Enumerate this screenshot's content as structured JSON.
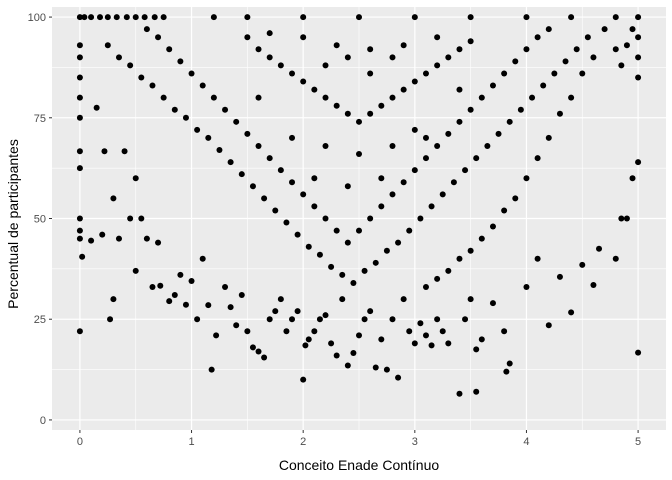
{
  "chart_data": {
    "type": "scatter",
    "title": "",
    "xlabel": "Conceito Enade Contínuo",
    "ylabel": "Percentual de participantes",
    "xlim": [
      -0.25,
      5.25
    ],
    "ylim": [
      -2.5,
      102.5
    ],
    "x_ticks": [
      0,
      1,
      2,
      3,
      4,
      5
    ],
    "x_tick_labels": [
      "0",
      "1",
      "2",
      "3",
      "4",
      "5"
    ],
    "y_ticks": [
      0,
      25,
      50,
      75,
      100
    ],
    "y_tick_labels": [
      "0",
      "25",
      "50",
      "75",
      "100"
    ],
    "grid": true,
    "legend": "none",
    "colors": {
      "panel": "#ebebeb",
      "grid": "#ffffff",
      "point": "#000000"
    },
    "series": [
      {
        "values": [
          [
            0.0,
            100
          ],
          [
            0.04,
            100
          ],
          [
            0.1,
            100
          ],
          [
            0.18,
            100
          ],
          [
            0.25,
            100
          ],
          [
            0.33,
            100
          ],
          [
            0.42,
            100
          ],
          [
            0.5,
            100
          ],
          [
            0.58,
            100
          ],
          [
            0.67,
            100
          ],
          [
            0.75,
            100
          ],
          [
            1.2,
            100
          ],
          [
            1.5,
            100
          ],
          [
            2.0,
            100
          ],
          [
            2.5,
            100
          ],
          [
            3.0,
            100
          ],
          [
            3.5,
            100
          ],
          [
            4.0,
            100
          ],
          [
            4.4,
            100
          ],
          [
            4.8,
            100
          ],
          [
            5.0,
            100
          ],
          [
            0.0,
            93
          ],
          [
            0.0,
            90
          ],
          [
            0.0,
            85
          ],
          [
            0.0,
            80
          ],
          [
            0.0,
            75
          ],
          [
            0.0,
            66.7
          ],
          [
            0.0,
            62.5
          ],
          [
            0.0,
            50
          ],
          [
            0.0,
            47
          ],
          [
            0.0,
            45
          ],
          [
            0.0,
            22
          ],
          [
            0.02,
            40.5
          ],
          [
            0.1,
            44.5
          ],
          [
            0.15,
            77.5
          ],
          [
            0.2,
            46
          ],
          [
            0.22,
            66.7
          ],
          [
            0.27,
            25
          ],
          [
            0.3,
            30
          ],
          [
            0.3,
            55
          ],
          [
            0.35,
            45
          ],
          [
            0.4,
            66.7
          ],
          [
            0.45,
            50
          ],
          [
            0.5,
            37
          ],
          [
            0.5,
            60
          ],
          [
            0.55,
            50
          ],
          [
            0.6,
            45
          ],
          [
            0.65,
            33
          ],
          [
            0.7,
            44
          ],
          [
            0.72,
            33.3
          ],
          [
            0.8,
            29.5
          ],
          [
            0.85,
            31
          ],
          [
            0.9,
            36
          ],
          [
            0.95,
            28.6
          ],
          [
            1.0,
            34.5
          ],
          [
            1.05,
            25
          ],
          [
            1.1,
            40
          ],
          [
            1.15,
            28.5
          ],
          [
            1.18,
            12.5
          ],
          [
            1.22,
            21
          ],
          [
            1.3,
            33
          ],
          [
            1.35,
            28
          ],
          [
            1.4,
            23.5
          ],
          [
            1.45,
            31
          ],
          [
            1.5,
            22
          ],
          [
            1.55,
            18
          ],
          [
            1.6,
            17
          ],
          [
            1.65,
            15.5
          ],
          [
            1.7,
            25
          ],
          [
            1.75,
            27
          ],
          [
            1.8,
            30
          ],
          [
            1.85,
            22
          ],
          [
            1.9,
            25
          ],
          [
            1.95,
            27
          ],
          [
            2.0,
            10
          ],
          [
            2.02,
            18.5
          ],
          [
            2.05,
            20
          ],
          [
            2.1,
            22
          ],
          [
            2.15,
            25
          ],
          [
            2.2,
            26
          ],
          [
            2.25,
            19
          ],
          [
            2.3,
            16
          ],
          [
            2.35,
            30
          ],
          [
            2.4,
            13.5
          ],
          [
            2.45,
            16.6
          ],
          [
            2.5,
            21
          ],
          [
            2.55,
            25
          ],
          [
            2.6,
            27
          ],
          [
            2.65,
            13
          ],
          [
            2.7,
            20
          ],
          [
            2.75,
            12.5
          ],
          [
            2.8,
            25
          ],
          [
            2.85,
            10.5
          ],
          [
            2.9,
            30
          ],
          [
            2.95,
            22
          ],
          [
            3.0,
            19
          ],
          [
            3.05,
            24
          ],
          [
            3.1,
            21
          ],
          [
            3.15,
            18.5
          ],
          [
            3.2,
            25
          ],
          [
            3.25,
            22
          ],
          [
            3.3,
            19
          ],
          [
            3.4,
            6.5
          ],
          [
            3.45,
            25
          ],
          [
            3.5,
            30
          ],
          [
            3.55,
            7
          ],
          [
            3.55,
            17.5
          ],
          [
            3.6,
            20
          ],
          [
            3.7,
            29
          ],
          [
            3.8,
            22
          ],
          [
            3.82,
            12
          ],
          [
            3.85,
            14
          ],
          [
            4.0,
            33
          ],
          [
            4.1,
            40
          ],
          [
            4.2,
            23.5
          ],
          [
            4.3,
            35.5
          ],
          [
            4.4,
            26.7
          ],
          [
            4.5,
            38.5
          ],
          [
            4.6,
            33.5
          ],
          [
            4.65,
            42.5
          ],
          [
            4.8,
            40
          ],
          [
            4.85,
            50
          ],
          [
            4.9,
            50
          ],
          [
            4.95,
            60
          ],
          [
            5.0,
            64
          ],
          [
            5.0,
            16.7
          ],
          [
            5.0,
            95
          ],
          [
            5.0,
            90
          ],
          [
            5.0,
            85
          ],
          [
            4.95,
            97
          ],
          [
            4.9,
            93
          ],
          [
            4.85,
            88
          ],
          [
            4.8,
            92
          ],
          [
            4.7,
            97
          ],
          [
            4.6,
            90
          ],
          [
            4.5,
            86
          ],
          [
            4.4,
            80
          ],
          [
            4.3,
            76
          ],
          [
            4.2,
            70
          ],
          [
            4.1,
            65
          ],
          [
            4.0,
            60
          ],
          [
            3.9,
            55
          ],
          [
            3.8,
            52
          ],
          [
            3.7,
            48
          ],
          [
            3.6,
            45
          ],
          [
            3.5,
            42
          ],
          [
            3.4,
            40
          ],
          [
            3.3,
            37
          ],
          [
            3.2,
            35
          ],
          [
            3.1,
            33
          ],
          [
            0.25,
            93
          ],
          [
            0.35,
            90
          ],
          [
            0.45,
            88
          ],
          [
            0.55,
            85
          ],
          [
            0.65,
            83
          ],
          [
            0.75,
            80
          ],
          [
            0.85,
            77
          ],
          [
            0.95,
            75
          ],
          [
            1.05,
            72
          ],
          [
            1.15,
            70
          ],
          [
            1.25,
            67
          ],
          [
            1.35,
            64
          ],
          [
            1.45,
            61
          ],
          [
            1.55,
            58
          ],
          [
            1.65,
            55
          ],
          [
            1.75,
            52
          ],
          [
            1.85,
            49
          ],
          [
            1.95,
            46
          ],
          [
            2.05,
            43
          ],
          [
            2.15,
            41
          ],
          [
            2.25,
            38
          ],
          [
            2.35,
            36
          ],
          [
            2.45,
            34
          ],
          [
            2.55,
            37
          ],
          [
            2.65,
            39
          ],
          [
            2.75,
            42
          ],
          [
            2.85,
            44
          ],
          [
            2.95,
            47
          ],
          [
            3.05,
            50
          ],
          [
            3.15,
            53
          ],
          [
            3.25,
            56
          ],
          [
            3.35,
            59
          ],
          [
            3.45,
            62
          ],
          [
            3.55,
            65
          ],
          [
            3.65,
            68
          ],
          [
            3.75,
            71
          ],
          [
            3.85,
            74
          ],
          [
            3.95,
            77
          ],
          [
            4.05,
            80
          ],
          [
            4.15,
            83
          ],
          [
            4.25,
            86
          ],
          [
            4.35,
            89
          ],
          [
            4.45,
            92
          ],
          [
            4.55,
            95
          ],
          [
            0.6,
            97
          ],
          [
            0.7,
            95
          ],
          [
            0.8,
            92
          ],
          [
            0.9,
            89
          ],
          [
            1.0,
            86
          ],
          [
            1.1,
            83
          ],
          [
            1.2,
            80
          ],
          [
            1.3,
            77
          ],
          [
            1.4,
            74
          ],
          [
            1.5,
            71
          ],
          [
            1.6,
            68
          ],
          [
            1.7,
            65
          ],
          [
            1.8,
            62
          ],
          [
            1.9,
            59
          ],
          [
            2.0,
            56
          ],
          [
            2.1,
            53
          ],
          [
            2.2,
            50
          ],
          [
            2.3,
            47
          ],
          [
            2.4,
            44
          ],
          [
            2.5,
            47
          ],
          [
            2.6,
            50
          ],
          [
            2.7,
            53
          ],
          [
            2.8,
            56
          ],
          [
            2.9,
            59
          ],
          [
            3.0,
            62
          ],
          [
            3.1,
            65
          ],
          [
            3.2,
            68
          ],
          [
            3.3,
            71
          ],
          [
            3.4,
            74
          ],
          [
            3.5,
            77
          ],
          [
            3.6,
            80
          ],
          [
            3.7,
            83
          ],
          [
            3.8,
            86
          ],
          [
            3.9,
            89
          ],
          [
            4.0,
            92
          ],
          [
            4.1,
            95
          ],
          [
            4.2,
            97
          ],
          [
            1.5,
            95
          ],
          [
            1.6,
            92
          ],
          [
            1.7,
            90
          ],
          [
            1.8,
            88
          ],
          [
            1.9,
            86
          ],
          [
            2.0,
            84
          ],
          [
            2.1,
            82
          ],
          [
            2.2,
            80
          ],
          [
            2.3,
            78
          ],
          [
            2.4,
            76
          ],
          [
            2.5,
            74
          ],
          [
            2.6,
            76
          ],
          [
            2.7,
            78
          ],
          [
            2.8,
            80
          ],
          [
            2.9,
            82
          ],
          [
            3.0,
            84
          ],
          [
            3.1,
            86
          ],
          [
            3.2,
            88
          ],
          [
            3.3,
            90
          ],
          [
            3.4,
            92
          ],
          [
            3.5,
            94
          ],
          [
            1.7,
            96
          ],
          [
            2.0,
            95
          ],
          [
            2.3,
            93
          ],
          [
            2.6,
            92
          ],
          [
            2.9,
            93
          ],
          [
            3.2,
            95
          ],
          [
            1.9,
            70
          ],
          [
            2.2,
            68
          ],
          [
            2.5,
            66
          ],
          [
            2.8,
            68
          ],
          [
            3.1,
            70
          ],
          [
            2.1,
            60
          ],
          [
            2.4,
            58
          ],
          [
            2.7,
            60
          ],
          [
            3.0,
            72
          ],
          [
            1.6,
            80
          ],
          [
            3.4,
            82
          ],
          [
            2.2,
            88
          ],
          [
            2.6,
            86
          ],
          [
            2.4,
            90
          ],
          [
            2.8,
            90
          ]
        ]
      }
    ]
  }
}
